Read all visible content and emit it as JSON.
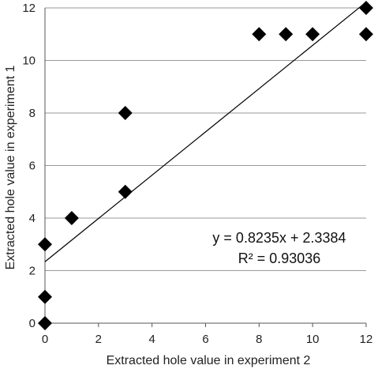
{
  "chart_data": {
    "type": "scatter",
    "xlabel": "Extracted hole value in experiment 2",
    "ylabel": "Extracted hole value in experiment 1",
    "xlim": [
      0,
      12
    ],
    "ylim": [
      0,
      12
    ],
    "xticks": [
      "0",
      "2",
      "4",
      "6",
      "8",
      "10",
      "12"
    ],
    "yticks": [
      "0",
      "2",
      "4",
      "6",
      "8",
      "10",
      "12"
    ],
    "grid": "horizontal",
    "marker": "diamond",
    "marker_color": "#000000",
    "series": [
      {
        "x": [
          0,
          0,
          0,
          1,
          3,
          3,
          8,
          9,
          10,
          12,
          12
        ],
        "y": [
          0,
          1,
          3,
          4,
          5,
          8,
          11,
          11,
          11,
          11,
          12
        ]
      }
    ],
    "trendline": {
      "type": "linear",
      "slope": 0.8235,
      "intercept": 2.3384
    },
    "annotations": [
      "y = 0.8235x + 2.3384",
      "R² = 0.93036"
    ]
  }
}
